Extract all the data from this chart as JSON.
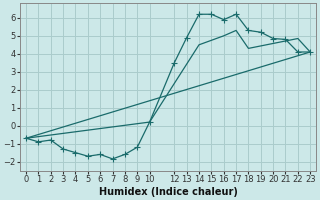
{
  "xlabel": "Humidex (Indice chaleur)",
  "bg_color": "#cce8e8",
  "grid_color": "#aacccc",
  "line_color": "#1a6b6b",
  "line1_x": [
    0,
    1,
    2,
    3,
    4,
    5,
    6,
    7,
    8,
    9,
    10,
    12,
    13,
    14,
    15,
    16,
    17,
    18,
    19,
    20,
    21,
    22,
    23
  ],
  "line1_y": [
    -0.7,
    -0.9,
    -0.8,
    -1.3,
    -1.5,
    -1.7,
    -1.6,
    -1.85,
    -1.6,
    -1.2,
    0.2,
    3.5,
    4.9,
    6.2,
    6.2,
    5.9,
    6.2,
    5.3,
    5.2,
    4.85,
    4.8,
    4.1,
    4.1
  ],
  "line2_x": [
    0,
    10,
    14,
    16,
    17,
    18,
    22,
    23
  ],
  "line2_y": [
    -0.7,
    0.2,
    4.5,
    5.0,
    5.3,
    4.3,
    4.85,
    4.1
  ],
  "line3_x": [
    0,
    23
  ],
  "line3_y": [
    -0.7,
    4.1
  ],
  "xlim": [
    -0.5,
    23.5
  ],
  "ylim": [
    -2.5,
    6.8
  ],
  "yticks": [
    -2,
    -1,
    0,
    1,
    2,
    3,
    4,
    5,
    6
  ],
  "xticks": [
    0,
    1,
    2,
    3,
    4,
    5,
    6,
    7,
    8,
    9,
    10,
    12,
    13,
    14,
    15,
    16,
    17,
    18,
    19,
    20,
    21,
    22,
    23
  ],
  "tick_fontsize": 6,
  "xlabel_fontsize": 7
}
